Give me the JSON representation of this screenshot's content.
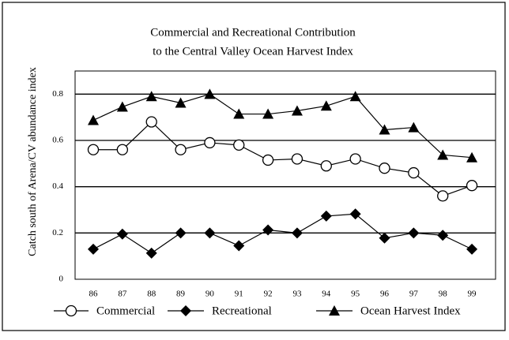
{
  "chart_data": {
    "type": "line",
    "title_lines": [
      "Commercial and Recreational Contribution",
      "to the Central Valley Ocean Harvest Index"
    ],
    "y_label": "Catch south of Arena/CV abundance index",
    "categories": [
      "86",
      "87",
      "88",
      "89",
      "90",
      "91",
      "92",
      "93",
      "94",
      "95",
      "96",
      "97",
      "98",
      "99"
    ],
    "series": [
      {
        "name": "Commercial",
        "color": "#000000",
        "marker": "circle",
        "values": [
          0.56,
          0.56,
          0.68,
          0.56,
          0.59,
          0.58,
          0.515,
          0.52,
          0.49,
          0.52,
          0.48,
          0.46,
          0.36,
          0.405
        ]
      },
      {
        "name": "Recreational",
        "color": "#000000",
        "marker": "diamond",
        "values": [
          0.13,
          0.195,
          0.113,
          0.2,
          0.2,
          0.145,
          0.213,
          0.2,
          0.273,
          0.282,
          0.178,
          0.2,
          0.19,
          0.13
        ]
      },
      {
        "name": "Ocean Harvest Index",
        "color": "#000000",
        "marker": "triangle",
        "values": [
          0.687,
          0.745,
          0.79,
          0.762,
          0.8,
          0.714,
          0.714,
          0.728,
          0.749,
          0.79,
          0.646,
          0.656,
          0.537,
          0.526
        ]
      }
    ],
    "ylim": [
      0,
      0.9
    ],
    "yticks": [
      0,
      0.2,
      0.4,
      0.6,
      0.8
    ],
    "grid": true,
    "legend": "bottom"
  }
}
